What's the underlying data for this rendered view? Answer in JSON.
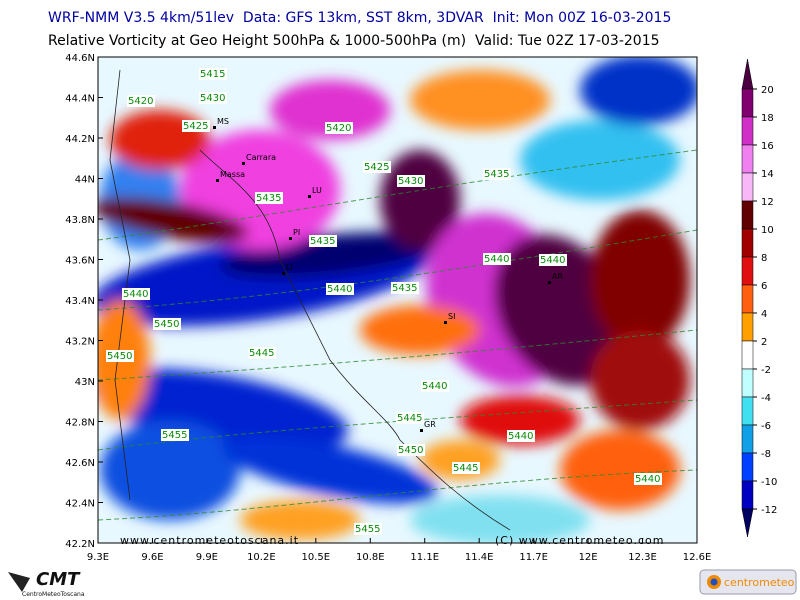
{
  "header": {
    "line1": "WRF-NMM V3.5 4km/51lev  Data: GFS 13km, SST 8km, 3DVAR  Init: Mon 00Z 16-03-2015",
    "line2": "Relative Vorticity at Geo Height 500hPa & 1000-500hPa (m)  Valid: Tue 02Z 17-03-2015"
  },
  "axes": {
    "longitudes": [
      "9.3E",
      "9.6E",
      "9.9E",
      "10.2E",
      "10.5E",
      "10.8E",
      "11.1E",
      "11.4E",
      "11.7E",
      "12E",
      "12.3E",
      "12.6E"
    ],
    "latitudes": [
      "44.6N",
      "44.4N",
      "44.2N",
      "44N",
      "43.8N",
      "43.6N",
      "43.4N",
      "43.2N",
      "43N",
      "42.8N",
      "42.6N",
      "42.4N",
      "42.2N"
    ]
  },
  "colorbar": {
    "ticks": [
      20,
      18,
      16,
      14,
      12,
      10,
      8,
      6,
      4,
      2,
      -2,
      -4,
      -6,
      -8,
      -10,
      -12
    ],
    "colors": [
      "#4a0040",
      "#800070",
      "#d030c8",
      "#f080f0",
      "#f8b8f8",
      "#600000",
      "#a00000",
      "#e01010",
      "#ff6010",
      "#ffa000",
      "#ffffff",
      "#c0ffff",
      "#40e0f0",
      "#10a0e8",
      "#0040ff",
      "#0000c0",
      "#000060"
    ]
  },
  "contour_labels": [
    "5415",
    "5420",
    "5430",
    "5425",
    "5420",
    "5425",
    "5430",
    "5435",
    "5435",
    "5435",
    "5440",
    "5440",
    "5440",
    "5440",
    "5435",
    "5450",
    "5450",
    "5445",
    "5440",
    "5445",
    "5455",
    "5450",
    "5440",
    "5445",
    "5440",
    "5455"
  ],
  "cities": [
    "MS",
    "Carrara",
    "Massa",
    "LU",
    "PI",
    "LI",
    "SI",
    "AR",
    "GR"
  ],
  "watermark": "www.centrometeotoscana.it",
  "copyright": "(C) www.centrometeo.com",
  "logos": {
    "left": "CMT",
    "left_sub": "CentroMeteoToscana",
    "right": "centrometeo"
  }
}
